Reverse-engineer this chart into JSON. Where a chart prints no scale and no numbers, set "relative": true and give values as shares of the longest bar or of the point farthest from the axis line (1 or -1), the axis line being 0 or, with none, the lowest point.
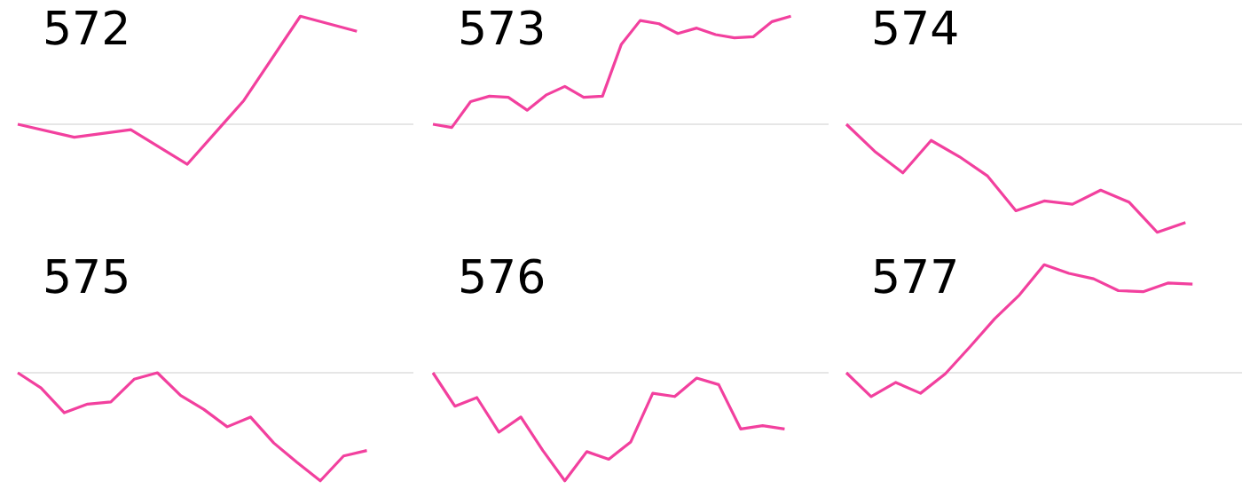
{
  "chart_data": [
    {
      "type": "line",
      "title": "572",
      "relative": true,
      "color": "#f2409e",
      "categories": [
        null,
        null,
        null,
        null,
        null,
        null,
        null,
        null
      ],
      "values": [
        0,
        -0.12,
        -0.05,
        -0.37,
        0.22,
        1,
        0.86,
        null
      ]
    },
    {
      "type": "line",
      "title": "573",
      "relative": true,
      "color": "#f2409e",
      "categories": [
        null,
        null,
        null,
        null,
        null,
        null,
        null,
        null,
        null,
        null,
        null,
        null,
        null,
        null,
        null,
        null,
        null,
        null,
        null,
        null,
        null,
        null
      ],
      "values": [
        0,
        -0.03,
        0.21,
        0.26,
        0.25,
        0.13,
        0.27,
        0.35,
        0.25,
        0.26,
        0.74,
        0.96,
        0.93,
        0.84,
        0.89,
        0.83,
        0.8,
        0.81,
        0.95,
        1,
        null,
        null
      ]
    },
    {
      "type": "line",
      "title": "574",
      "relative": true,
      "color": "#f2409e",
      "categories": [
        null,
        null,
        null,
        null,
        null,
        null,
        null,
        null,
        null,
        null,
        null,
        null,
        null,
        null,
        null
      ],
      "values": [
        0,
        -0.25,
        -0.45,
        -0.15,
        -0.3,
        -0.48,
        -0.8,
        -0.71,
        -0.74,
        -0.61,
        -0.72,
        -1,
        -0.91,
        null,
        null
      ]
    },
    {
      "type": "line",
      "title": "575",
      "relative": true,
      "color": "#f2409e",
      "categories": [
        null,
        null,
        null,
        null,
        null,
        null,
        null,
        null,
        null,
        null,
        null,
        null,
        null,
        null,
        null,
        null,
        null,
        null
      ],
      "values": [
        0,
        -0.14,
        -0.37,
        -0.29,
        -0.27,
        -0.06,
        0,
        -0.21,
        -0.34,
        -0.5,
        -0.41,
        -0.65,
        -0.83,
        -1,
        -0.77,
        -0.72,
        null,
        null
      ]
    },
    {
      "type": "line",
      "title": "576",
      "relative": true,
      "color": "#f2409e",
      "categories": [
        null,
        null,
        null,
        null,
        null,
        null,
        null,
        null,
        null,
        null,
        null,
        null,
        null,
        null,
        null,
        null,
        null,
        null,
        null
      ],
      "values": [
        0,
        -0.31,
        -0.23,
        -0.55,
        -0.41,
        -0.72,
        -1,
        -0.73,
        -0.8,
        -0.64,
        -0.19,
        -0.22,
        -0.05,
        -0.11,
        -0.52,
        -0.49,
        -0.52,
        null,
        null
      ]
    },
    {
      "type": "line",
      "title": "577",
      "relative": true,
      "color": "#f2409e",
      "categories": [
        null,
        null,
        null,
        null,
        null,
        null,
        null,
        null,
        null,
        null,
        null,
        null,
        null,
        null,
        null,
        null,
        null
      ],
      "values": [
        0,
        -0.22,
        -0.09,
        -0.19,
        -0.01,
        0.24,
        0.5,
        0.72,
        1,
        0.92,
        0.87,
        0.76,
        0.75,
        0.83,
        0.82,
        null,
        null
      ]
    }
  ]
}
